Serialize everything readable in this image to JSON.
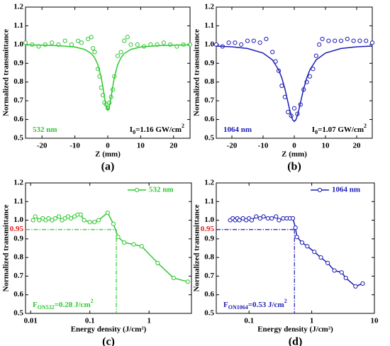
{
  "chart_data": [
    {
      "type": "scatter",
      "panel_label": "(a)",
      "xlabel": "Z (mm)",
      "ylabel": "Normalized transmittance",
      "xlim": [
        -25,
        25
      ],
      "xticks": [
        -20,
        -10,
        0,
        10,
        20
      ],
      "ylim": [
        0.5,
        1.2
      ],
      "yticks": [
        0.5,
        0.6,
        0.7,
        0.8,
        0.9,
        {
          "value": 1,
          "label": "1.0"
        },
        1.1,
        1.2
      ],
      "series": [
        {
          "style": "markers",
          "color": "#2ec82e",
          "x": [
            -25,
            -23,
            -21,
            -19,
            -17,
            -15,
            -13,
            -11,
            -9,
            -8,
            -6,
            -5,
            -4.5,
            -4,
            -3,
            -2.5,
            -2,
            -1.5,
            -1,
            -0.5,
            0,
            0.5,
            1,
            1.5,
            2,
            3,
            4,
            5,
            6,
            7,
            9,
            11,
            13,
            15,
            17,
            19,
            21,
            23,
            25
          ],
          "values": [
            1.01,
            1.0,
            0.99,
            1.0,
            1.01,
            1.0,
            1.02,
            1.0,
            1.02,
            1.01,
            1.03,
            1.04,
            0.98,
            0.96,
            0.87,
            0.83,
            0.77,
            0.73,
            0.69,
            0.68,
            0.66,
            0.69,
            0.72,
            0.76,
            0.83,
            0.94,
            0.96,
            1.02,
            1.04,
            1.0,
            1.0,
            0.99,
            1.0,
            1.0,
            1.01,
            1.0,
            0.99,
            1.0,
            1.0
          ]
        },
        {
          "style": "line",
          "color": "#2ec82e",
          "x": [
            -25,
            -20,
            -15,
            -10,
            -7,
            -5,
            -4,
            -3,
            -2,
            -1.5,
            -1,
            -0.5,
            0,
            0.5,
            1,
            1.5,
            2,
            3,
            4,
            5,
            7,
            10,
            15,
            20,
            25
          ],
          "values": [
            0.998,
            0.997,
            0.994,
            0.987,
            0.974,
            0.952,
            0.93,
            0.892,
            0.825,
            0.776,
            0.72,
            0.671,
            0.65,
            0.671,
            0.72,
            0.776,
            0.825,
            0.892,
            0.93,
            0.952,
            0.974,
            0.987,
            0.994,
            0.997,
            0.998
          ]
        }
      ],
      "annotations": [
        {
          "corner": "bottom-left",
          "color": "#2ec82e",
          "parts": [
            {
              "text": "532 nm"
            }
          ]
        },
        {
          "corner": "bottom-right",
          "color": "#000000",
          "parts": [
            {
              "text": "I"
            },
            {
              "text": "0",
              "sub": true
            },
            {
              "text": "=1.16 GW/cm"
            },
            {
              "text": "2",
              "sup": true
            }
          ]
        }
      ]
    },
    {
      "type": "scatter",
      "panel_label": "(b)",
      "xlabel": "Z (mm)",
      "ylabel": "Normalized transmittance",
      "xlim": [
        -25,
        25
      ],
      "xticks": [
        -20,
        -10,
        0,
        10,
        20
      ],
      "ylim": [
        0.5,
        1.2
      ],
      "yticks": [
        0.5,
        0.6,
        0.7,
        0.8,
        0.9,
        {
          "value": 1,
          "label": "1.0"
        },
        1.1,
        1.2
      ],
      "series": [
        {
          "style": "markers",
          "color": "#1c1cb4",
          "x": [
            -25,
            -23,
            -21,
            -19,
            -17,
            -15,
            -13,
            -11,
            -9,
            -7,
            -6,
            -5,
            -4,
            -3,
            -2,
            -1,
            0,
            1,
            2,
            3,
            4,
            5,
            6,
            7,
            8,
            9,
            11,
            13,
            15,
            17,
            19,
            21,
            23,
            25
          ],
          "values": [
            1.0,
            0.99,
            1.01,
            1.01,
            1.0,
            1.02,
            1.02,
            1.01,
            1.03,
            0.96,
            0.91,
            0.86,
            0.78,
            0.72,
            0.64,
            0.62,
            0.66,
            0.63,
            0.68,
            0.76,
            0.8,
            0.83,
            0.87,
            0.94,
            1.0,
            1.03,
            1.02,
            1.02,
            1.02,
            1.03,
            1.02,
            1.02,
            1.02,
            1.01
          ]
        },
        {
          "style": "line",
          "color": "#1c1cb4",
          "x": [
            -25,
            -20,
            -15,
            -10,
            -7,
            -5,
            -4,
            -3,
            -2,
            -1.5,
            -1,
            -0.5,
            0,
            0.5,
            1,
            1.5,
            2,
            3,
            4,
            5,
            7,
            10,
            15,
            20,
            25
          ],
          "values": [
            0.992,
            0.988,
            0.979,
            0.955,
            0.918,
            0.865,
            0.822,
            0.764,
            0.691,
            0.654,
            0.621,
            0.598,
            0.59,
            0.598,
            0.621,
            0.654,
            0.691,
            0.764,
            0.822,
            0.865,
            0.918,
            0.955,
            0.979,
            0.988,
            0.992
          ]
        }
      ],
      "annotations": [
        {
          "corner": "bottom-left",
          "color": "#1c1cb4",
          "parts": [
            {
              "text": "1064 nm"
            }
          ]
        },
        {
          "corner": "bottom-right",
          "color": "#000000",
          "parts": [
            {
              "text": "I"
            },
            {
              "text": "0",
              "sub": true
            },
            {
              "text": "=1.07 GW/cm"
            },
            {
              "text": "2",
              "sup": true
            }
          ]
        }
      ]
    },
    {
      "type": "line",
      "panel_label": "(c)",
      "xlabel": "Energy density (J/cm²)",
      "ylabel": "Normalized transmittance",
      "xscale": "log",
      "xlim": [
        0.0082,
        5.2
      ],
      "xticks": [
        0.01,
        0.1,
        1
      ],
      "ylim": [
        0.5,
        1.2
      ],
      "yticks": [
        0.5,
        0.6,
        0.7,
        0.8,
        0.9,
        {
          "value": 1,
          "label": "1.0"
        },
        1.1,
        1.2
      ],
      "legend": "upper right",
      "series": [
        {
          "name": "532 nm",
          "color": "#2ec82e",
          "x": [
            0.011,
            0.012,
            0.014,
            0.016,
            0.018,
            0.02,
            0.023,
            0.026,
            0.03,
            0.034,
            0.038,
            0.043,
            0.048,
            0.055,
            0.062,
            0.07,
            0.08,
            0.1,
            0.12,
            0.14,
            0.2,
            0.25,
            0.3,
            0.38,
            0.55,
            0.75,
            1.4,
            2.6,
            4.5
          ],
          "values": [
            1.0,
            1.02,
            1.0,
            1.01,
            1.0,
            1.01,
            1.0,
            1.01,
            1.02,
            1.0,
            1.01,
            1.02,
            1.01,
            1.02,
            1.03,
            1.03,
            1.0,
            0.99,
            0.99,
            1.0,
            1.04,
            0.98,
            0.91,
            0.88,
            0.87,
            0.86,
            0.77,
            0.69,
            0.67
          ]
        }
      ],
      "threshold_x": 0.28,
      "threshold_y": 0.95,
      "threshold_color": "#e02020",
      "annotations": [
        {
          "corner": "bottom-left",
          "color": "#2ec82e",
          "parts": [
            {
              "text": "F"
            },
            {
              "text": "ON532",
              "sub": true
            },
            {
              "text": "=0.28 J/cm"
            },
            {
              "text": "2",
              "sup": true
            }
          ]
        }
      ]
    },
    {
      "type": "line",
      "panel_label": "(d)",
      "xlabel": "Energy density (J/cm²)",
      "ylabel": "Normalized transmittance",
      "xscale": "log",
      "xlim": [
        0.03,
        10
      ],
      "xticks": [
        0.1,
        1,
        10
      ],
      "ylim": [
        0.5,
        1.2
      ],
      "yticks": [
        0.5,
        0.6,
        0.7,
        0.8,
        0.9,
        {
          "value": 1,
          "label": "1.0"
        },
        1.1,
        1.2
      ],
      "legend": "upper right",
      "series": [
        {
          "name": "1064 nm",
          "color": "#1c1cb4",
          "x": [
            0.05,
            0.055,
            0.06,
            0.065,
            0.07,
            0.08,
            0.09,
            0.1,
            0.11,
            0.13,
            0.15,
            0.17,
            0.2,
            0.23,
            0.27,
            0.3,
            0.35,
            0.4,
            0.45,
            0.5,
            0.55,
            0.58,
            0.7,
            0.85,
            1.1,
            1.4,
            1.8,
            2.3,
            3.0,
            3.5,
            5,
            6.5
          ],
          "values": [
            1.0,
            1.01,
            1.0,
            1.01,
            1.0,
            1.01,
            1.0,
            1.01,
            1.0,
            1.02,
            1.01,
            1.02,
            1.01,
            1.01,
            1.02,
            1.0,
            1.01,
            1.01,
            1.01,
            1.01,
            0.96,
            0.91,
            0.88,
            0.86,
            0.83,
            0.8,
            0.77,
            0.73,
            0.72,
            0.69,
            0.645,
            0.66
          ]
        }
      ],
      "threshold_x": 0.53,
      "threshold_y": 0.95,
      "threshold_color": "#e02020",
      "annotations": [
        {
          "corner": "bottom-left",
          "color": "#1c1cb4",
          "parts": [
            {
              "text": "F"
            },
            {
              "text": "ON1064",
              "sub": true
            },
            {
              "text": "=0.53 J/cm"
            },
            {
              "text": "2",
              "sup": true
            }
          ]
        }
      ]
    }
  ]
}
